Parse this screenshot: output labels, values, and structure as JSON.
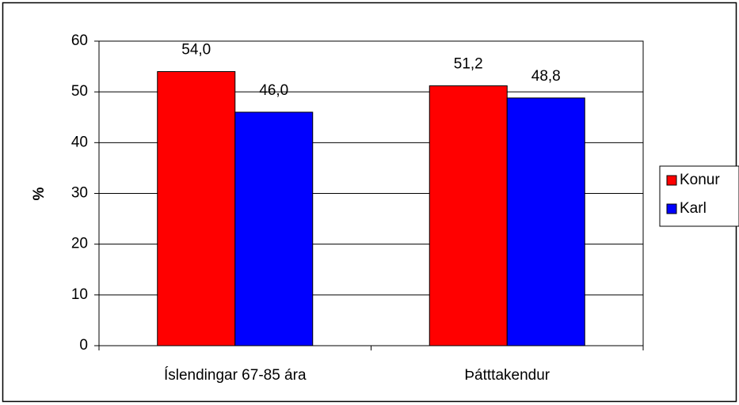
{
  "chart_data": {
    "type": "bar",
    "categories": [
      "Íslendingar 67-85 ára",
      "Þátttakendur"
    ],
    "series": [
      {
        "name": "Konur",
        "color": "#ff0000",
        "values": [
          54.0,
          51.2
        ],
        "value_labels": [
          "54,0",
          "51,2"
        ]
      },
      {
        "name": "Karl",
        "color": "#0000ff",
        "values": [
          46.0,
          48.8
        ],
        "value_labels": [
          "46,0",
          "48,8"
        ]
      }
    ],
    "y_label": "%",
    "ylim": [
      0,
      60
    ],
    "yticks": [
      0,
      10,
      20,
      30,
      40,
      50,
      60
    ],
    "grid": true,
    "legend": "right"
  }
}
